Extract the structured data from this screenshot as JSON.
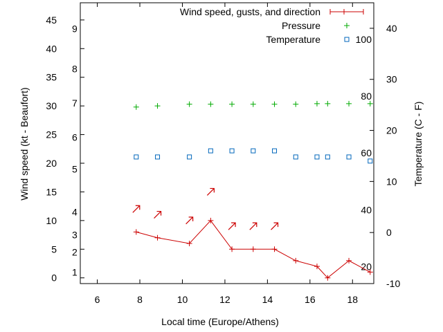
{
  "chart_data": {
    "type": "line",
    "xlabel": "Local time (Europe/Athens)",
    "ylabel_left": "Wind speed (kt - Beaufort)",
    "ylabel_right": "Temperature (C - F)",
    "xlim": [
      5.2,
      19.0
    ],
    "ylim_left": [
      -1,
      48
    ],
    "ylim_right": [
      -10,
      45
    ],
    "grid": false,
    "legend_position": "top-right",
    "x_ticks": [
      "6",
      "8",
      "10",
      "12",
      "14",
      "16",
      "18"
    ],
    "y_left_ticks": [
      "0",
      "5",
      "10",
      "15",
      "20",
      "25",
      "30",
      "35",
      "40",
      "45"
    ],
    "y_right_ticks": [
      "-10",
      "0",
      "10",
      "20",
      "30",
      "40"
    ],
    "beaufort_labels": [
      {
        "label": "1",
        "value": 1
      },
      {
        "label": "2",
        "value": 4.5
      },
      {
        "label": "3",
        "value": 7.5
      },
      {
        "label": "4",
        "value": 11.5
      },
      {
        "label": "5",
        "value": 19
      },
      {
        "label": "6",
        "value": 24.5
      },
      {
        "label": "7",
        "value": 30.5
      },
      {
        "label": "8",
        "value": 36.5
      },
      {
        "label": "9",
        "value": 43.5
      }
    ],
    "fahrenheit_labels": [
      {
        "label": "20",
        "value": -6.7
      },
      {
        "label": "40",
        "value": 4.4
      },
      {
        "label": "60",
        "value": 15.6
      },
      {
        "label": "80",
        "value": 26.7
      },
      {
        "label": "100",
        "value": 37.8
      }
    ],
    "series": [
      {
        "name": "Wind speed, gusts, and direction",
        "color": "#cc0000",
        "x": [
          7.83,
          8.83,
          10.33,
          11.33,
          12.33,
          13.33,
          14.33,
          15.33,
          16.33,
          16.83,
          17.83,
          18.83
        ],
        "y": [
          8,
          7,
          6,
          10,
          5,
          5,
          5,
          3,
          2,
          0,
          3,
          1
        ]
      },
      {
        "name": "Pressure",
        "color": "#00aa00",
        "marker": "plus",
        "x": [
          7.83,
          8.83,
          10.33,
          11.33,
          12.33,
          13.33,
          14.33,
          15.33,
          16.33,
          16.83,
          17.83,
          18.83
        ],
        "y": [
          29.8,
          30.0,
          30.3,
          30.3,
          30.3,
          30.3,
          30.3,
          30.3,
          30.4,
          30.4,
          30.4,
          30.4
        ]
      },
      {
        "name": "Temperature",
        "color": "#0066bb",
        "marker": "square",
        "x": [
          7.83,
          8.83,
          10.33,
          11.33,
          12.33,
          13.33,
          14.33,
          15.33,
          16.33,
          16.83,
          17.83,
          18.83
        ],
        "y": [
          14.8,
          14.8,
          14.8,
          16.0,
          16.0,
          16.0,
          16.0,
          14.8,
          14.8,
          14.8,
          14.8,
          14.0
        ]
      }
    ],
    "gust_arrows": [
      {
        "x": 7.83,
        "value": 12
      },
      {
        "x": 8.83,
        "value": 11
      },
      {
        "x": 10.33,
        "value": 10
      },
      {
        "x": 11.33,
        "value": 15
      },
      {
        "x": 12.33,
        "value": 9
      },
      {
        "x": 13.33,
        "value": 9
      },
      {
        "x": 14.33,
        "value": 9
      }
    ]
  }
}
